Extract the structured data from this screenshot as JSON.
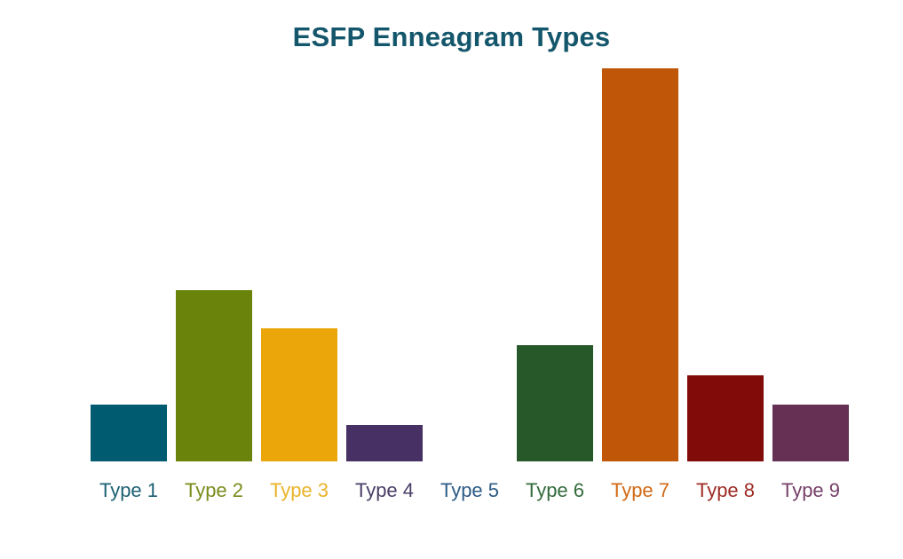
{
  "chart_data": {
    "type": "bar",
    "title": "ESFP Enneagram Types",
    "title_color": "#14566B",
    "categories": [
      "Type 1",
      "Type 2",
      "Type 3",
      "Type 4",
      "Type 5",
      "Type 6",
      "Type 7",
      "Type 8",
      "Type 9"
    ],
    "values": [
      5.4,
      16.3,
      12.7,
      3.5,
      0,
      11.1,
      37.4,
      8.2,
      5.4
    ],
    "values_note": "relative share estimated from bar heights; chart shows no value axis or data labels",
    "bar_colors": [
      "#005B70",
      "#6A830B",
      "#EBA60A",
      "#463064",
      null,
      "#27582A",
      "#C05608",
      "#800B08",
      "#653053"
    ],
    "label_colors": [
      "#1D6073",
      "#7A8B1B",
      "#E9B32A",
      "#4A3E66",
      "#2C5B85",
      "#336B3C",
      "#D26914",
      "#9E2B25",
      "#764067"
    ],
    "xlabel": "",
    "ylabel": "",
    "ylim": [
      0,
      40
    ],
    "grid": false,
    "legend": false,
    "axes_visible": false,
    "background": "#FFFFFF"
  }
}
